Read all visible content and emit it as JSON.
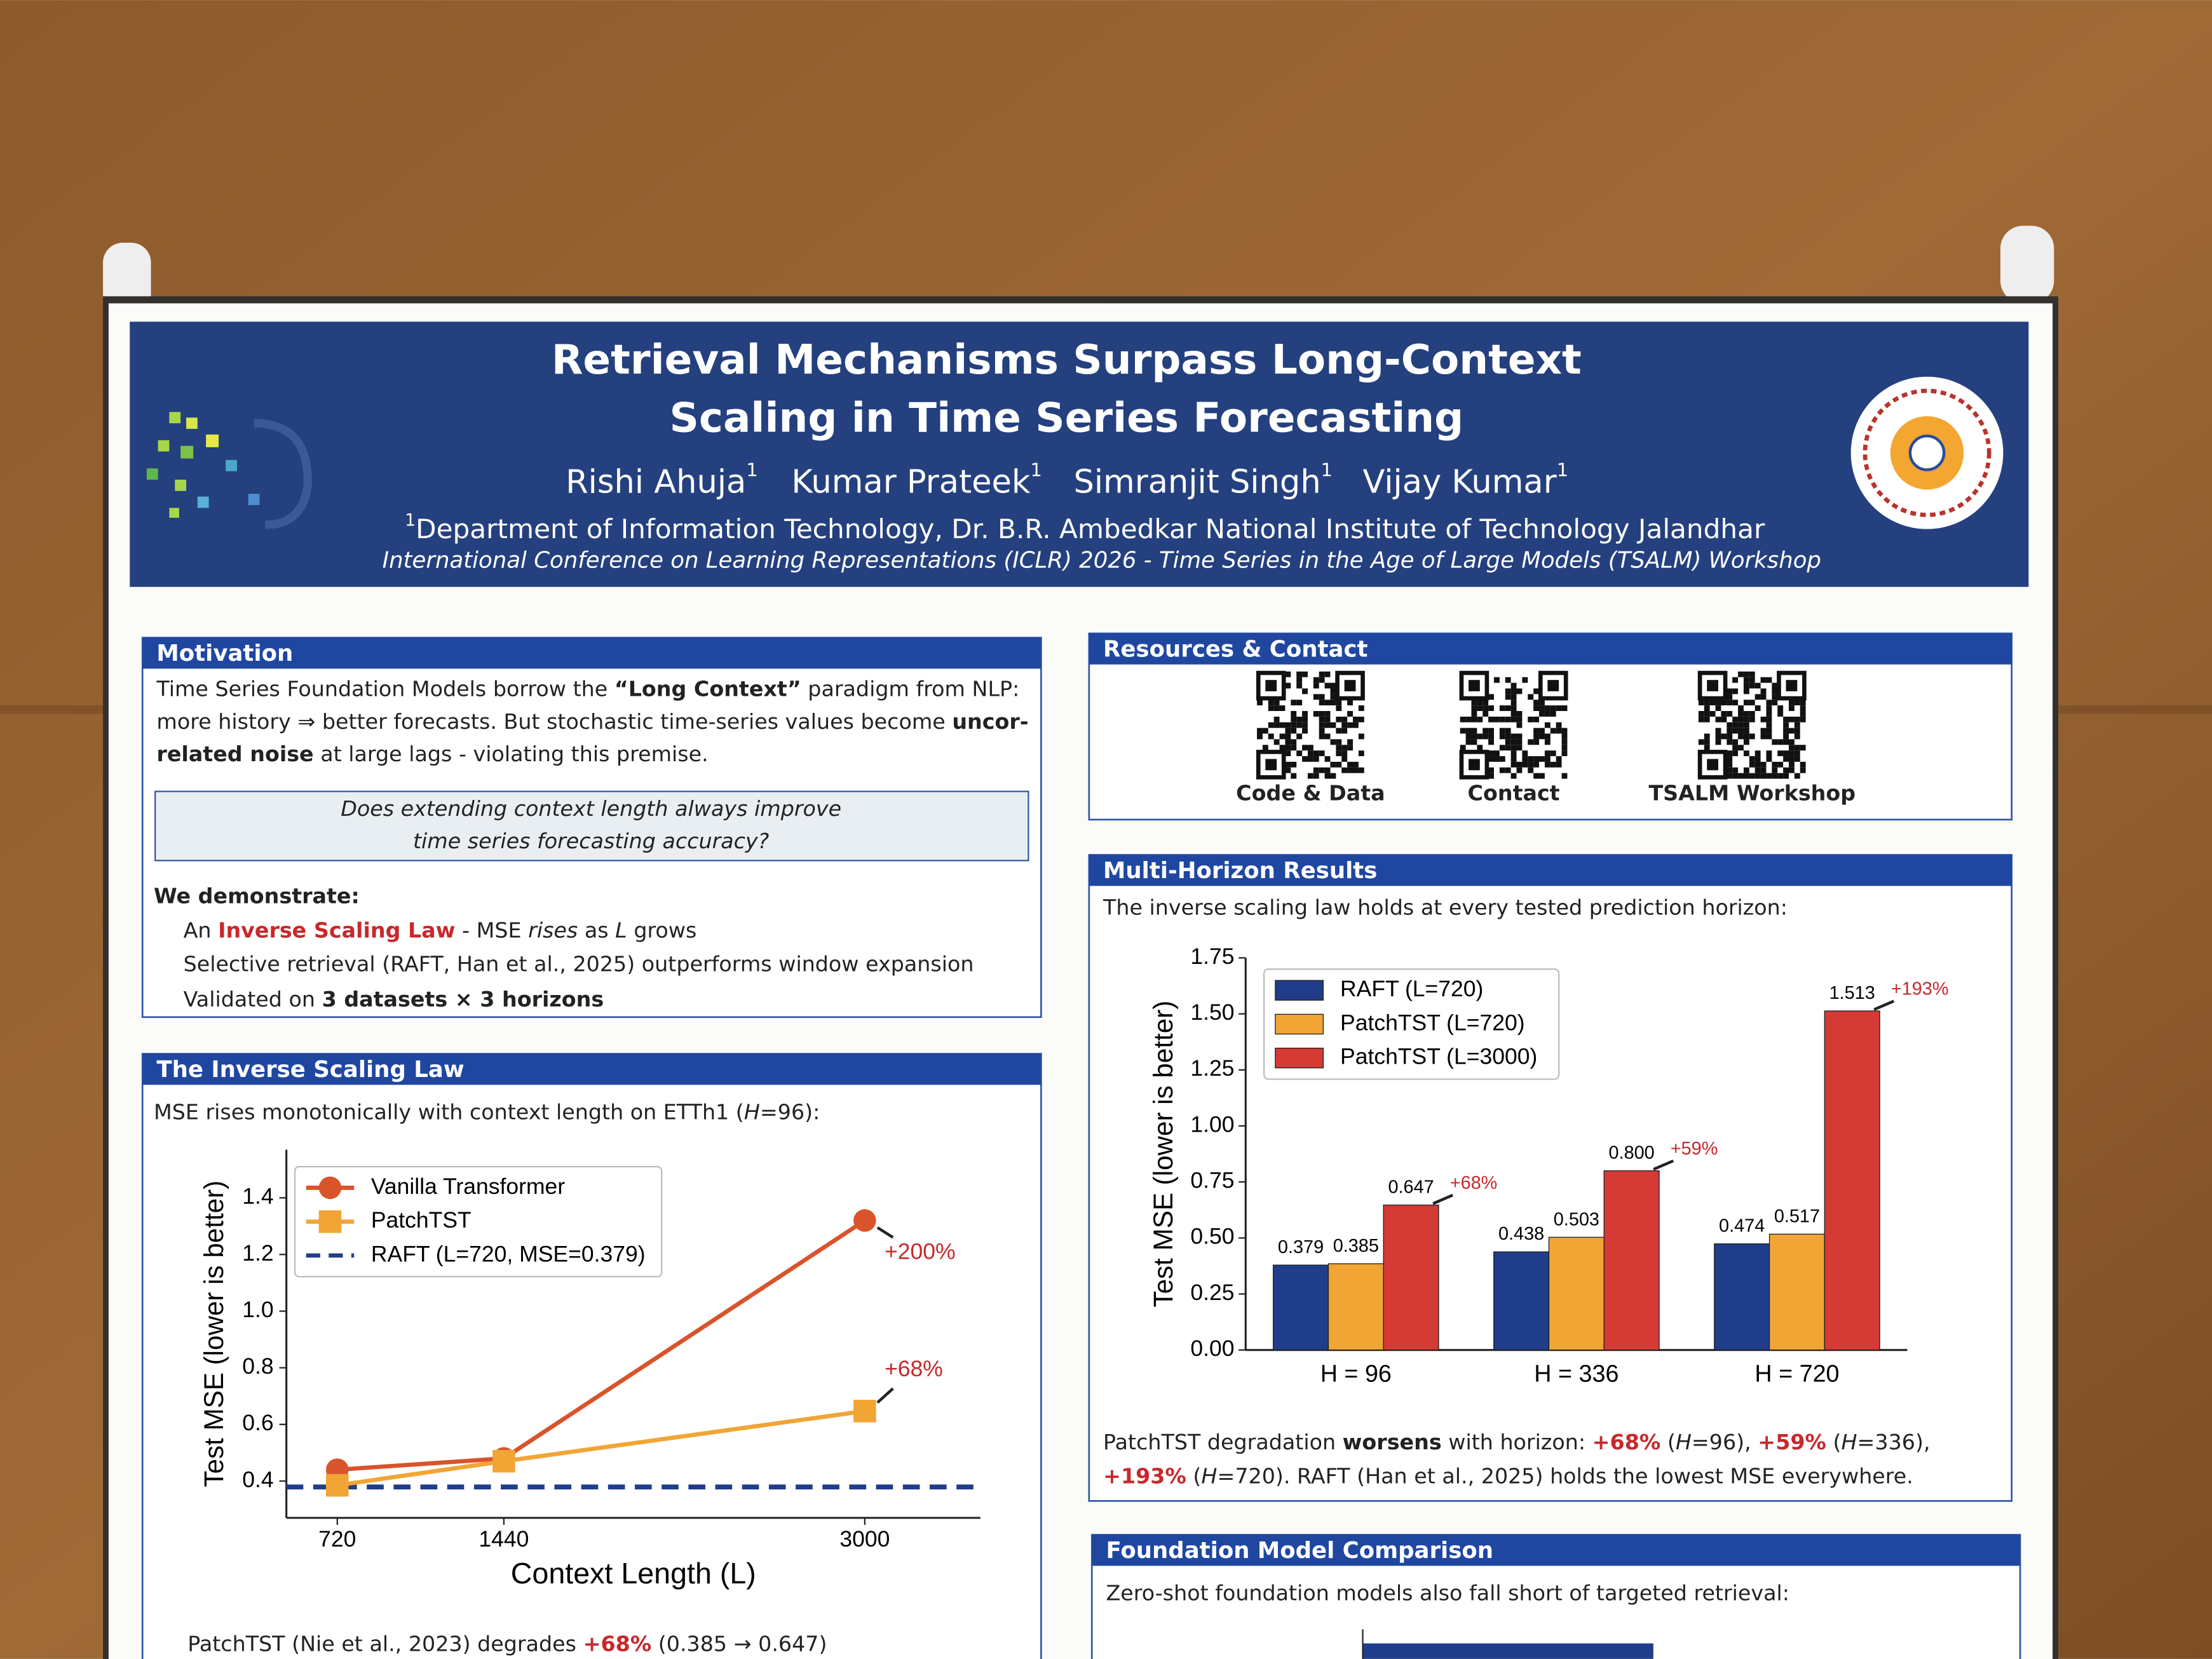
{
  "poster": {
    "title": [
      "Retrieval Mechanisms Surpass Long-Context",
      "Scaling in Time Series Forecasting"
    ],
    "authors": [
      "Rishi Ahuja",
      "Kumar Prateek",
      "Simranjit Singh",
      "Vijay Kumar"
    ],
    "affiliation_mark": "1",
    "affiliation": "Department of Information Technology, Dr. B.R. Ambedkar National Institute of Technology Jalandhar",
    "conference": "International Conference on Learning Representations (ICLR) 2026 - Time Series in the Age of Large Models (TSALM) Workshop",
    "motivation": {
      "heading": "Motivation",
      "lines": [
        [
          "Time Series Foundation Models borrow the ",
          "“Long Context”",
          " paradigm from NLP:"
        ],
        [
          "more history ⇒ better forecasts.  But stochastic time-series values become ",
          "uncor-"
        ],
        [
          "related noise",
          " at large lags - violating this premise."
        ]
      ],
      "question": [
        "Does extending context length always improve",
        "time series forecasting accuracy?"
      ],
      "demonstrate": "We demonstrate:",
      "bullets": [
        [
          "An ",
          "Inverse Scaling Law",
          " - MSE ",
          "rises",
          " as ",
          "L",
          " grows"
        ],
        [
          "Selective retrieval (RAFT, Han et al., 2025) outperforms window expansion"
        ],
        [
          "Validated on ",
          "3 datasets × 3 horizons"
        ]
      ]
    },
    "inverse": {
      "heading": "The Inverse Scaling Law",
      "intro": [
        "MSE rises monotonically with context length on ETTh1 (",
        "H",
        "=96):"
      ],
      "caption": [
        "PatchTST (Nie et al., 2023) degrades ",
        "+68%",
        "  (0.385 → 0.647)"
      ]
    },
    "resources": {
      "heading": "Resources & Contact",
      "qr": [
        "Code & Data",
        "Contact",
        "TSALM Workshop"
      ]
    },
    "multi": {
      "heading": "Multi-Horizon Results",
      "intro": "The inverse scaling law holds at every tested prediction horizon:",
      "caption": [
        [
          "PatchTST degradation ",
          "worsens",
          " with horizon: ",
          "+68%",
          " (",
          "H",
          "=96),  ",
          "+59%",
          " (",
          "H",
          "=336),"
        ],
        [
          "+193%",
          " (",
          "H",
          "=720).  RAFT (Han et al., 2025) holds the lowest MSE everywhere."
        ]
      ]
    },
    "foundation": {
      "heading": "Foundation Model Comparison",
      "intro": "Zero-shot foundation models also fall short of targeted retrieval:"
    }
  },
  "chart_data": [
    {
      "type": "line",
      "y_label": "Test MSE (lower is better)",
      "x_label": "Context Length (L)",
      "x": [
        720,
        1440,
        3000
      ],
      "xlim": [
        500,
        3500
      ],
      "xticks": [
        720,
        1440,
        3000
      ],
      "ylim": [
        0.27,
        1.57
      ],
      "yticks": [
        0.4,
        0.6,
        0.8,
        {
          "value": 1,
          "label": "1.0"
        },
        1.2,
        1.4
      ],
      "series": [
        {
          "name": "Vanilla Transformer",
          "color": "#d9532b",
          "values": [
            0.44,
            0.48,
            1.32
          ]
        },
        {
          "name": "PatchTST",
          "color": "#f0a535",
          "values": [
            0.385,
            0.47,
            0.647
          ]
        }
      ],
      "reference_lines": [
        {
          "name": "RAFT (L=720, MSE=0.379)",
          "color": "#1f3d8a",
          "value": 0.379
        }
      ],
      "annotations": [
        "+200%",
        "+68%"
      ],
      "legend": "upper left"
    },
    {
      "type": "bar",
      "y_label": "Test MSE (lower is better)",
      "categories": [
        "H = 96",
        "H = 336",
        "H = 720"
      ],
      "ylim": [
        0,
        1.75
      ],
      "yticks": [
        {
          "value": 0,
          "label": "0.00"
        },
        {
          "value": 0.25,
          "label": "0.25"
        },
        {
          "value": 0.5,
          "label": "0.50"
        },
        {
          "value": 0.75,
          "label": "0.75"
        },
        {
          "value": 1,
          "label": "1.00"
        },
        {
          "value": 1.25,
          "label": "1.25"
        },
        {
          "value": 1.5,
          "label": "1.50"
        },
        {
          "value": 1.75,
          "label": "1.75"
        }
      ],
      "series": [
        {
          "name": "RAFT (L=720)",
          "color": "#1f3d8a",
          "values": [
            0.379,
            0.438,
            0.474
          ]
        },
        {
          "name": "PatchTST (L=720)",
          "color": "#f0a535",
          "values": [
            0.385,
            0.503,
            0.517
          ]
        },
        {
          "name": "PatchTST (L=3000)",
          "color": "#d63a35",
          "values": [
            0.647,
            0.8,
            1.513
          ],
          "value_labels": [
            "0.647",
            "0.800",
            "1.513"
          ]
        }
      ],
      "annotations": [
        "+68%",
        "+59%",
        "+193%"
      ],
      "legend": "upper left"
    }
  ]
}
